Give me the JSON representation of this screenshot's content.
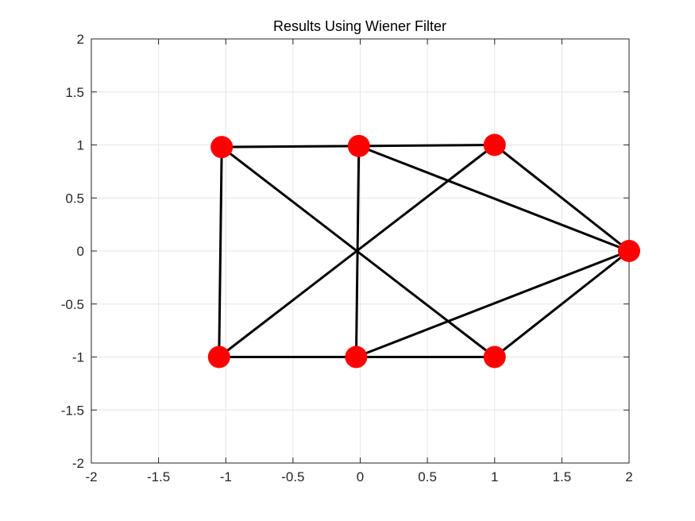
{
  "chart_data": {
    "type": "scatter",
    "title": "Results Using Wiener Filter",
    "xlabel": "",
    "ylabel": "",
    "xlim": [
      -2,
      2
    ],
    "ylim": [
      -2,
      2
    ],
    "grid": true,
    "legend": "none",
    "x_ticks": [
      "-2",
      "-1.5",
      "-1",
      "-0.5",
      "0",
      "0.5",
      "1",
      "1.5",
      "2"
    ],
    "y_ticks": [
      "-2",
      "-1.5",
      "-1",
      "-0.5",
      "0",
      "0.5",
      "1",
      "1.5",
      "2"
    ],
    "colors": {
      "node": "#ff0000",
      "edge": "#000000",
      "grid": "#e6e6e6",
      "axis": "#262626"
    },
    "nodes": [
      {
        "x": -1.03,
        "y": 0.98
      },
      {
        "x": -0.01,
        "y": 0.99
      },
      {
        "x": 1.0,
        "y": 1.0
      },
      {
        "x": 2.0,
        "y": 0.0
      },
      {
        "x": -1.05,
        "y": -1.0
      },
      {
        "x": -0.03,
        "y": -1.0
      },
      {
        "x": 1.0,
        "y": -1.0
      }
    ],
    "edges": [
      [
        0,
        1
      ],
      [
        1,
        2
      ],
      [
        0,
        4
      ],
      [
        1,
        5
      ],
      [
        4,
        5
      ],
      [
        5,
        6
      ],
      [
        0,
        6
      ],
      [
        4,
        2
      ],
      [
        1,
        3
      ],
      [
        2,
        3
      ],
      [
        5,
        3
      ],
      [
        6,
        3
      ]
    ]
  }
}
